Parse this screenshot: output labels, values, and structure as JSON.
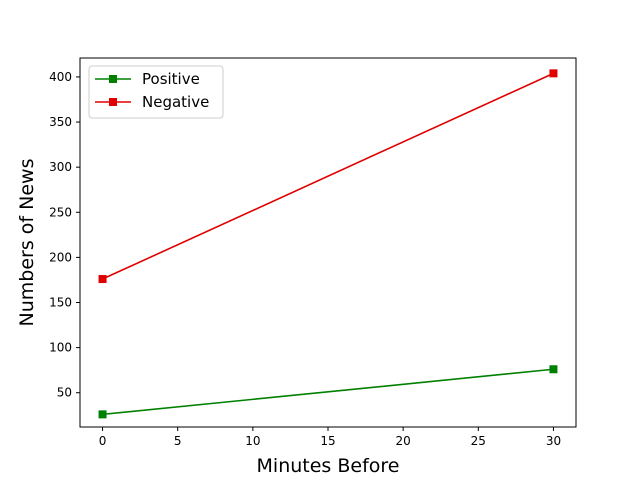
{
  "chart_data": {
    "type": "line",
    "title": "",
    "xlabel": "Minutes Before",
    "ylabel": "Numbers of News",
    "xlim": [
      -1.5,
      31.5
    ],
    "ylim": [
      12,
      421
    ],
    "xticks": [
      0,
      5,
      10,
      15,
      20,
      25,
      30
    ],
    "yticks": [
      50,
      100,
      150,
      200,
      250,
      300,
      350,
      400
    ],
    "grid": false,
    "legend_position": "upper-left",
    "x": [
      0,
      30
    ],
    "series": [
      {
        "name": "Positive",
        "color": "#008000",
        "marker": "square",
        "values": [
          26,
          76
        ]
      },
      {
        "name": "Negative",
        "color": "#e00000",
        "marker": "square",
        "values": [
          176,
          404
        ]
      }
    ]
  }
}
